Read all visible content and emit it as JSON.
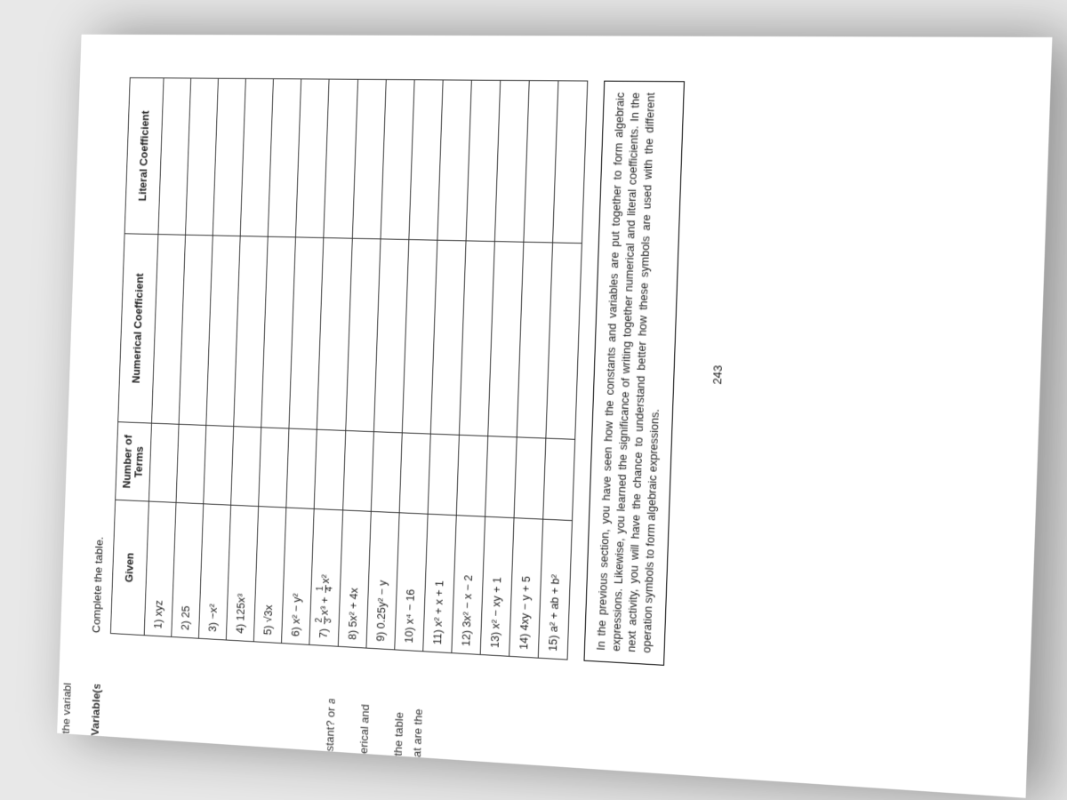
{
  "marginSnippets": {
    "line1": "the variable(s) the",
    "line2": "Variable(s)",
    "line3": "stant? or a",
    "line4": "erical and",
    "line5": "the table",
    "line6": "at are the"
  },
  "instruction": "Complete the table.",
  "headers": {
    "given": "Given",
    "numTerms": "Number of Terms",
    "numCoef": "Numerical Coefficient",
    "litCoef": "Literal Coefficient"
  },
  "rows": [
    {
      "n": "1)",
      "expr": "xyz"
    },
    {
      "n": "2)",
      "expr": "25"
    },
    {
      "n": "3)",
      "expr": "−x²"
    },
    {
      "n": "4)",
      "expr": "125x³"
    },
    {
      "n": "5)",
      "expr": "√3x"
    },
    {
      "n": "6)",
      "expr": "x² − y²"
    },
    {
      "n": "7)",
      "expr_html": "<span class='frac'><span class='n'>2</span><span class='d'>3</span></span>x³ + <span class='frac'><span class='n'>1</span><span class='d'>4</span></span>x²"
    },
    {
      "n": "8)",
      "expr": "5x² + 4x"
    },
    {
      "n": "9)",
      "expr": "0.25y² − y"
    },
    {
      "n": "10)",
      "expr": "x⁴ − 16"
    },
    {
      "n": "11)",
      "expr": "x² + x + 1"
    },
    {
      "n": "12)",
      "expr": "3x² − x − 2"
    },
    {
      "n": "13)",
      "expr": "x² − xy + 1"
    },
    {
      "n": "14)",
      "expr": "4xy − y + 5"
    },
    {
      "n": "15)",
      "expr": "a² + ab + b²"
    }
  ],
  "box": "In the previous section, you have seen how the constants and variables are put together to form algebraic expressions. Likewise, you learned the significance of writing together numerical and literal coefficients. In the next activity, you will have the chance to understand better how these symbols are used with the different operation symbols to form algebraic expressions.",
  "pageNumber": "243",
  "colWidths": {
    "given": "24%",
    "numTerms": "14%",
    "numCoef": "34%",
    "litCoef": "28%"
  },
  "colors": {
    "text": "#222",
    "border": "#333",
    "boxBorder": "#000",
    "pageBg": "#fff",
    "bodyBg": "#e8e8e8"
  }
}
